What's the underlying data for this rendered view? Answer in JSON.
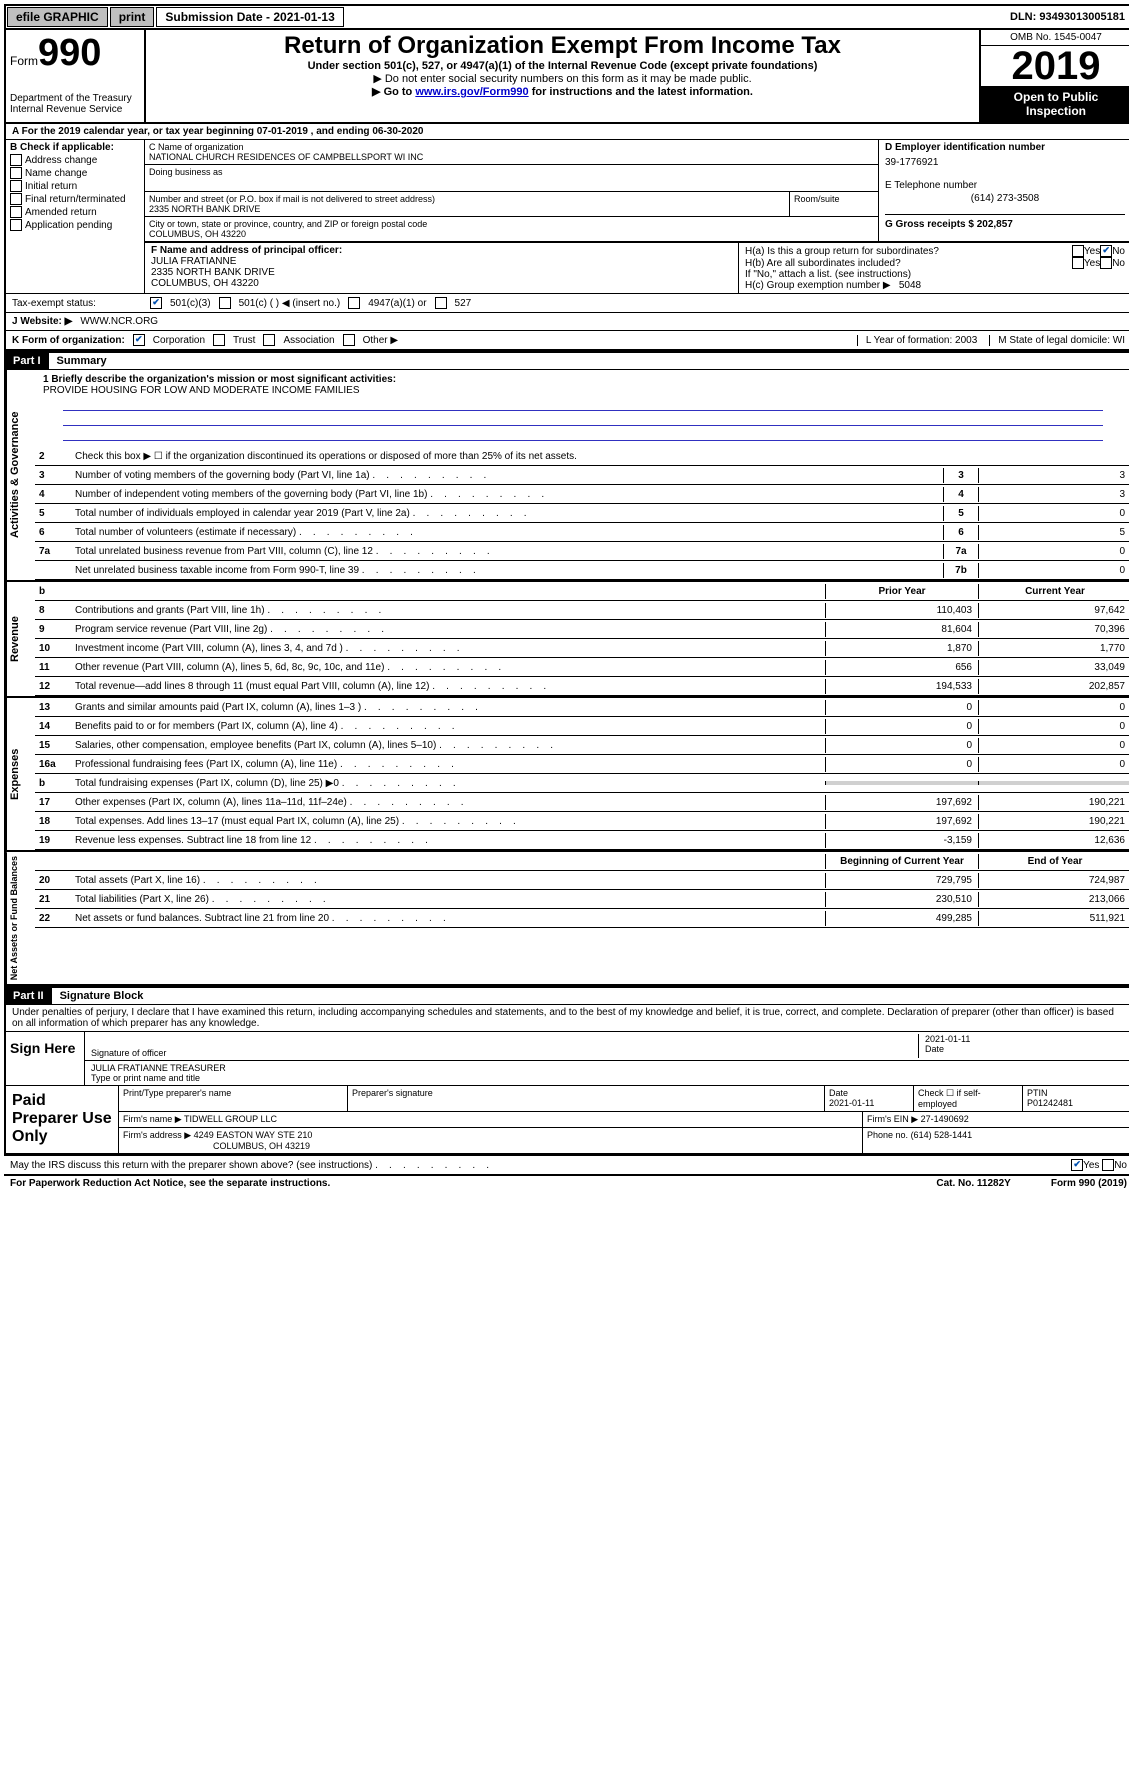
{
  "topbar": {
    "efile": "efile GRAPHIC",
    "print": "print",
    "sub_label": "Submission Date - 2021-01-13",
    "dln": "DLN: 93493013005181"
  },
  "header": {
    "form_prefix": "Form",
    "form_number": "990",
    "dept": "Department of the Treasury\nInternal Revenue Service",
    "title": "Return of Organization Exempt From Income Tax",
    "subtitle": "Under section 501(c), 527, or 4947(a)(1) of the Internal Revenue Code (except private foundations)",
    "note1": "▶ Do not enter social security numbers on this form as it may be made public.",
    "note2_pre": "▶ Go to ",
    "note2_link": "www.irs.gov/Form990",
    "note2_post": " for instructions and the latest information.",
    "omb": "OMB No. 1545-0047",
    "year": "2019",
    "open": "Open to Public Inspection"
  },
  "row_a": "A For the 2019 calendar year, or tax year beginning 07-01-2019    , and ending 06-30-2020",
  "box_b": {
    "label": "B Check if applicable:",
    "items": [
      "Address change",
      "Name change",
      "Initial return",
      "Final return/terminated",
      "Amended return",
      "Application pending"
    ]
  },
  "box_c": {
    "name_label": "C Name of organization",
    "name": "NATIONAL CHURCH RESIDENCES OF CAMPBELLSPORT WI INC",
    "dba_label": "Doing business as",
    "addr_label": "Number and street (or P.O. box if mail is not delivered to street address)",
    "addr": "2335 NORTH BANK DRIVE",
    "room_label": "Room/suite",
    "city_label": "City or town, state or province, country, and ZIP or foreign postal code",
    "city": "COLUMBUS, OH  43220"
  },
  "box_d": {
    "label": "D Employer identification number",
    "value": "39-1776921"
  },
  "box_e": {
    "label": "E Telephone number",
    "value": "(614) 273-3508"
  },
  "box_g": {
    "label": "G Gross receipts $ 202,857"
  },
  "box_f": {
    "label": "F  Name and address of principal officer:",
    "name": "JULIA FRATIANNE",
    "addr1": "2335 NORTH BANK DRIVE",
    "addr2": "COLUMBUS, OH  43220"
  },
  "box_h": {
    "ha": "H(a)  Is this a group return for subordinates?",
    "hb": "H(b)  Are all subordinates included?",
    "hb_note": "If \"No,\" attach a list. (see instructions)",
    "hc": "H(c)  Group exemption number ▶",
    "hc_val": "5048",
    "yes": "Yes",
    "no": "No"
  },
  "status": {
    "label": "Tax-exempt status:",
    "opt1": "501(c)(3)",
    "opt2": "501(c) (  ) ◀ (insert no.)",
    "opt3": "4947(a)(1) or",
    "opt4": "527"
  },
  "website": {
    "label": "J   Website: ▶",
    "value": "WWW.NCR.ORG"
  },
  "row_k": {
    "label": "K Form of organization:",
    "opts": [
      "Corporation",
      "Trust",
      "Association",
      "Other ▶"
    ],
    "l": "L Year of formation: 2003",
    "m": "M State of legal domicile: WI"
  },
  "part1": {
    "header": "Part I",
    "title": "Summary"
  },
  "mission": {
    "q": "1   Briefly describe the organization's mission or most significant activities:",
    "text": "PROVIDE HOUSING FOR LOW AND MODERATE INCOME FAMILIES"
  },
  "gov_lines": [
    {
      "n": "2",
      "t": "Check this box ▶ ☐  if the organization discontinued its operations or disposed of more than 25% of its net assets."
    },
    {
      "n": "3",
      "t": "Number of voting members of the governing body (Part VI, line 1a)",
      "c": "3",
      "v": "3"
    },
    {
      "n": "4",
      "t": "Number of independent voting members of the governing body (Part VI, line 1b)",
      "c": "4",
      "v": "3"
    },
    {
      "n": "5",
      "t": "Total number of individuals employed in calendar year 2019 (Part V, line 2a)",
      "c": "5",
      "v": "0"
    },
    {
      "n": "6",
      "t": "Total number of volunteers (estimate if necessary)",
      "c": "6",
      "v": "5"
    },
    {
      "n": "7a",
      "t": "Total unrelated business revenue from Part VIII, column (C), line 12",
      "c": "7a",
      "v": "0"
    },
    {
      "n": "",
      "t": "Net unrelated business taxable income from Form 990-T, line 39",
      "c": "7b",
      "v": "0"
    }
  ],
  "col_headers": {
    "prior": "Prior Year",
    "current": "Current Year",
    "bbal": "Beginning of Current Year",
    "ebal": "End of Year"
  },
  "rev_lines": [
    {
      "n": "8",
      "t": "Contributions and grants (Part VIII, line 1h)",
      "p": "110,403",
      "c": "97,642"
    },
    {
      "n": "9",
      "t": "Program service revenue (Part VIII, line 2g)",
      "p": "81,604",
      "c": "70,396"
    },
    {
      "n": "10",
      "t": "Investment income (Part VIII, column (A), lines 3, 4, and 7d )",
      "p": "1,870",
      "c": "1,770"
    },
    {
      "n": "11",
      "t": "Other revenue (Part VIII, column (A), lines 5, 6d, 8c, 9c, 10c, and 11e)",
      "p": "656",
      "c": "33,049"
    },
    {
      "n": "12",
      "t": "Total revenue—add lines 8 through 11 (must equal Part VIII, column (A), line 12)",
      "p": "194,533",
      "c": "202,857"
    }
  ],
  "exp_lines": [
    {
      "n": "13",
      "t": "Grants and similar amounts paid (Part IX, column (A), lines 1–3 )",
      "p": "0",
      "c": "0"
    },
    {
      "n": "14",
      "t": "Benefits paid to or for members (Part IX, column (A), line 4)",
      "p": "0",
      "c": "0"
    },
    {
      "n": "15",
      "t": "Salaries, other compensation, employee benefits (Part IX, column (A), lines 5–10)",
      "p": "0",
      "c": "0"
    },
    {
      "n": "16a",
      "t": "Professional fundraising fees (Part IX, column (A), line 11e)",
      "p": "0",
      "c": "0"
    },
    {
      "n": "b",
      "t": "Total fundraising expenses (Part IX, column (D), line 25) ▶0",
      "shade": true
    },
    {
      "n": "17",
      "t": "Other expenses (Part IX, column (A), lines 11a–11d, 11f–24e)",
      "p": "197,692",
      "c": "190,221"
    },
    {
      "n": "18",
      "t": "Total expenses. Add lines 13–17 (must equal Part IX, column (A), line 25)",
      "p": "197,692",
      "c": "190,221"
    },
    {
      "n": "19",
      "t": "Revenue less expenses. Subtract line 18 from line 12",
      "p": "-3,159",
      "c": "12,636"
    }
  ],
  "bal_lines": [
    {
      "n": "20",
      "t": "Total assets (Part X, line 16)",
      "p": "729,795",
      "c": "724,987"
    },
    {
      "n": "21",
      "t": "Total liabilities (Part X, line 26)",
      "p": "230,510",
      "c": "213,066"
    },
    {
      "n": "22",
      "t": "Net assets or fund balances. Subtract line 21 from line 20",
      "p": "499,285",
      "c": "511,921"
    }
  ],
  "side_labels": {
    "gov": "Activities & Governance",
    "rev": "Revenue",
    "exp": "Expenses",
    "bal": "Net Assets or Fund Balances"
  },
  "part2": {
    "header": "Part II",
    "title": "Signature Block"
  },
  "perjury": "Under penalties of perjury, I declare that I have examined this return, including accompanying schedules and statements, and to the best of my knowledge and belief, it is true, correct, and complete. Declaration of preparer (other than officer) is based on all information of which preparer has any knowledge.",
  "sign": {
    "here": "Sign Here",
    "sig_label": "Signature of officer",
    "date": "2021-01-11",
    "date_label": "Date",
    "name": "JULIA FRATIANNE  TREASURER",
    "name_label": "Type or print name and title"
  },
  "prep": {
    "label": "Paid Preparer Use Only",
    "h1": "Print/Type preparer's name",
    "h2": "Preparer's signature",
    "h3": "Date",
    "h4": "Check ☐ if self-employed",
    "h5": "PTIN",
    "date": "2021-01-11",
    "ptin": "P01242481",
    "firm_label": "Firm's name    ▶",
    "firm": "TIDWELL GROUP LLC",
    "ein_label": "Firm's EIN ▶",
    "ein": "27-1490692",
    "addr_label": "Firm's address ▶",
    "addr": "4249 EASTON WAY STE 210",
    "city": "COLUMBUS, OH  43219",
    "phone_label": "Phone no.",
    "phone": "(614) 528-1441"
  },
  "discuss": {
    "q": "May the IRS discuss this return with the preparer shown above? (see instructions)",
    "yes": "Yes",
    "no": "No"
  },
  "footer": {
    "pra": "For Paperwork Reduction Act Notice, see the separate instructions.",
    "cat": "Cat. No. 11282Y",
    "form": "Form 990 (2019)"
  }
}
